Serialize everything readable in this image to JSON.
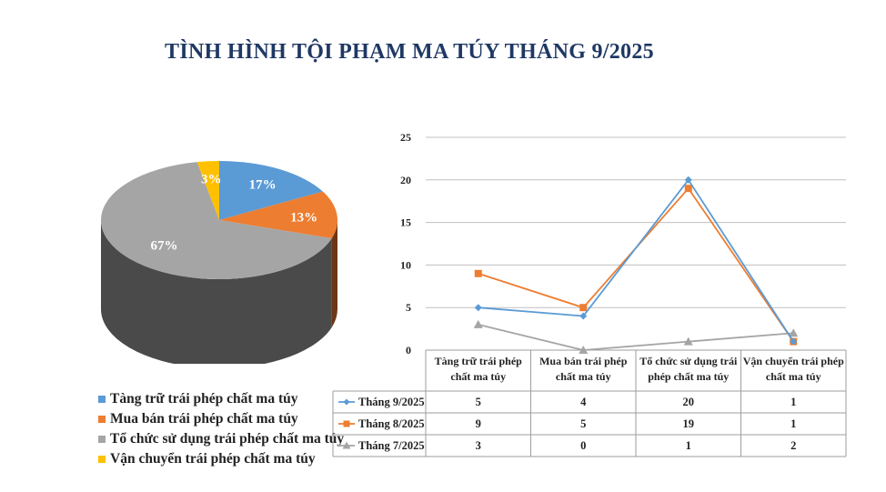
{
  "title": "TÌNH HÌNH TỘI PHẠM MA TÚY THÁNG 9/2025",
  "chart_data": [
    {
      "type": "pie",
      "style": "3d",
      "categories": [
        "Tàng trữ trái phép chất ma túy",
        "Mua bán trái phép chất ma túy",
        "Tổ chức sử dụng trái phép chất ma túy",
        "Vận chuyển trái phép chất ma túy"
      ],
      "values": [
        17,
        13,
        67,
        3
      ],
      "labels": [
        "17%",
        "13%",
        "67%",
        "3%"
      ],
      "colors": [
        "#5B9BD5",
        "#ED7D31",
        "#A5A5A5",
        "#FFC000"
      ],
      "legend_position": "bottom"
    },
    {
      "type": "line",
      "categories": [
        "Tàng trữ trái phép chất ma túy",
        "Mua bán trái phép chất ma túy",
        "Tổ chức sử dụng trái phép chất ma túy",
        "Vận chuyển trái phép chất ma túy"
      ],
      "category_lines": [
        [
          "Tàng trữ trái phép",
          "chất ma túy"
        ],
        [
          "Mua bán trái phép",
          "chất ma túy"
        ],
        [
          "Tổ chức sử dụng trái",
          "phép chất ma túy"
        ],
        [
          "Vận chuyển trái phép",
          "chất ma túy"
        ]
      ],
      "series": [
        {
          "name": "Tháng 9/2025",
          "values": [
            5,
            4,
            20,
            1
          ],
          "color": "#5B9BD5",
          "marker": "diamond"
        },
        {
          "name": "Tháng 8/2025",
          "values": [
            9,
            5,
            19,
            1
          ],
          "color": "#ED7D31",
          "marker": "square"
        },
        {
          "name": "Tháng 7/2025",
          "values": [
            3,
            0,
            1,
            2
          ],
          "color": "#A5A5A5",
          "marker": "triangle"
        }
      ],
      "ylim": [
        0,
        25
      ],
      "yticks": [
        0,
        5,
        10,
        15,
        20,
        25
      ],
      "grid": true,
      "data_table": true
    }
  ]
}
